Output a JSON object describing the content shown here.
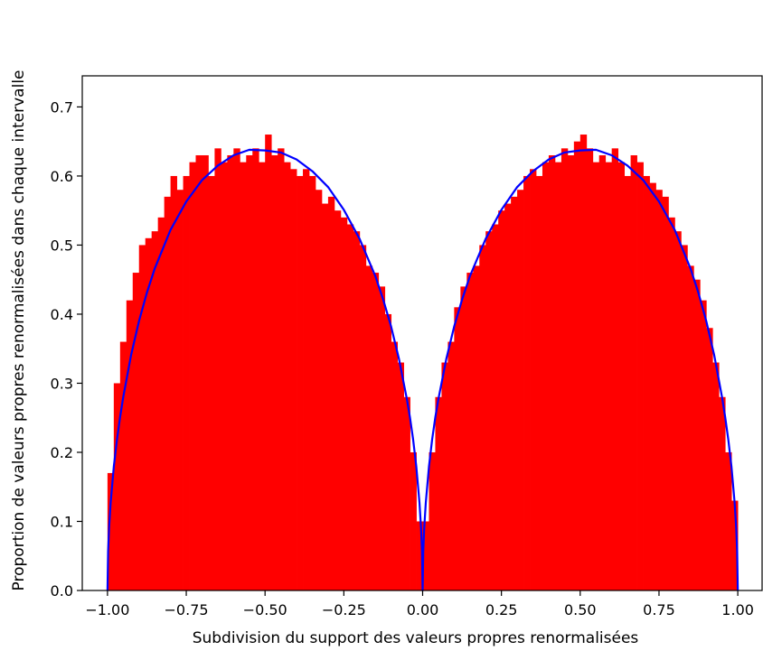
{
  "chart_data": {
    "type": "bar",
    "title": "",
    "xlabel": "Subdivision du support des valeurs propres renormalisées",
    "ylabel": "Proportion de valeurs propres renormalisées dans chaque intervalle",
    "xlim": [
      -1.08,
      1.08
    ],
    "ylim": [
      0.0,
      0.745
    ],
    "xticks": [
      -1.0,
      -0.75,
      -0.5,
      -0.25,
      0.0,
      0.25,
      0.5,
      0.75,
      1.0
    ],
    "xtick_labels": [
      "−1.00",
      "−0.75",
      "−0.50",
      "−0.25",
      "0.00",
      "0.25",
      "0.50",
      "0.75",
      "1.00"
    ],
    "yticks": [
      0.0,
      0.1,
      0.2,
      0.3,
      0.4,
      0.5,
      0.6,
      0.7
    ],
    "ytick_labels": [
      "0.0",
      "0.1",
      "0.2",
      "0.3",
      "0.4",
      "0.5",
      "0.6",
      "0.7"
    ],
    "grid": false,
    "histogram": {
      "name": "",
      "color": "#ff0000",
      "bin_edges": [
        -1.0,
        -0.98,
        -0.96,
        -0.94,
        -0.92,
        -0.9,
        -0.88,
        -0.86,
        -0.84,
        -0.82,
        -0.8,
        -0.78,
        -0.76,
        -0.74,
        -0.72,
        -0.7,
        -0.68,
        -0.66,
        -0.64,
        -0.62,
        -0.6,
        -0.58,
        -0.56,
        -0.54,
        -0.52,
        -0.5,
        -0.48,
        -0.46,
        -0.44,
        -0.42,
        -0.4,
        -0.38,
        -0.36,
        -0.34,
        -0.32,
        -0.3,
        -0.28,
        -0.26,
        -0.24,
        -0.22,
        -0.2,
        -0.18,
        -0.16,
        -0.14,
        -0.12,
        -0.1,
        -0.08,
        -0.06,
        -0.04,
        -0.02,
        0.0,
        0.02,
        0.04,
        0.06,
        0.08,
        0.1,
        0.12,
        0.14,
        0.16,
        0.18,
        0.2,
        0.22,
        0.24,
        0.26,
        0.28,
        0.3,
        0.32,
        0.34,
        0.36,
        0.38,
        0.4,
        0.42,
        0.44,
        0.46,
        0.48,
        0.5,
        0.52,
        0.54,
        0.56,
        0.58,
        0.6,
        0.62,
        0.64,
        0.66,
        0.68,
        0.7,
        0.72,
        0.74,
        0.76,
        0.78,
        0.8,
        0.82,
        0.84,
        0.86,
        0.88,
        0.9,
        0.92,
        0.94,
        0.96,
        0.98,
        1.0
      ],
      "values": [
        0.17,
        0.3,
        0.36,
        0.42,
        0.46,
        0.5,
        0.51,
        0.52,
        0.54,
        0.57,
        0.6,
        0.58,
        0.6,
        0.62,
        0.63,
        0.63,
        0.6,
        0.64,
        0.62,
        0.63,
        0.64,
        0.62,
        0.63,
        0.64,
        0.62,
        0.66,
        0.63,
        0.64,
        0.62,
        0.61,
        0.6,
        0.61,
        0.6,
        0.58,
        0.56,
        0.57,
        0.55,
        0.54,
        0.53,
        0.52,
        0.5,
        0.47,
        0.46,
        0.44,
        0.4,
        0.36,
        0.33,
        0.28,
        0.2,
        0.1,
        0.1,
        0.2,
        0.28,
        0.33,
        0.36,
        0.41,
        0.44,
        0.46,
        0.47,
        0.5,
        0.52,
        0.53,
        0.55,
        0.56,
        0.57,
        0.58,
        0.6,
        0.61,
        0.6,
        0.62,
        0.63,
        0.62,
        0.64,
        0.63,
        0.65,
        0.66,
        0.64,
        0.62,
        0.63,
        0.62,
        0.64,
        0.62,
        0.6,
        0.63,
        0.62,
        0.6,
        0.59,
        0.58,
        0.57,
        0.54,
        0.52,
        0.5,
        0.47,
        0.45,
        0.42,
        0.38,
        0.33,
        0.28,
        0.2,
        0.13
      ]
    },
    "curve": {
      "name": "",
      "color": "#0000ff",
      "x": [
        -1.0,
        -0.998,
        -0.995,
        -0.99,
        -0.98,
        -0.97,
        -0.96,
        -0.95,
        -0.925,
        -0.9,
        -0.875,
        -0.85,
        -0.8,
        -0.75,
        -0.7,
        -0.65,
        -0.6,
        -0.55,
        -0.5,
        -0.45,
        -0.4,
        -0.35,
        -0.3,
        -0.25,
        -0.2,
        -0.15,
        -0.125,
        -0.1,
        -0.075,
        -0.05,
        -0.04,
        -0.03,
        -0.02,
        -0.01,
        -0.005,
        -0.002,
        0.0,
        0.002,
        0.005,
        0.01,
        0.02,
        0.03,
        0.04,
        0.05,
        0.075,
        0.1,
        0.125,
        0.15,
        0.2,
        0.25,
        0.3,
        0.35,
        0.4,
        0.45,
        0.5,
        0.55,
        0.6,
        0.65,
        0.7,
        0.75,
        0.8,
        0.85,
        0.875,
        0.9,
        0.925,
        0.95,
        0.96,
        0.97,
        0.98,
        0.99,
        0.995,
        0.998,
        1.0
      ],
      "y": [
        0.0,
        0.057,
        0.09,
        0.127,
        0.179,
        0.218,
        0.251,
        0.28,
        0.341,
        0.39,
        0.431,
        0.466,
        0.522,
        0.563,
        0.594,
        0.615,
        0.63,
        0.638,
        0.637,
        0.634,
        0.624,
        0.607,
        0.584,
        0.551,
        0.509,
        0.455,
        0.421,
        0.382,
        0.335,
        0.277,
        0.25,
        0.218,
        0.179,
        0.127,
        0.09,
        0.057,
        0.0,
        0.057,
        0.09,
        0.127,
        0.179,
        0.218,
        0.25,
        0.277,
        0.335,
        0.382,
        0.421,
        0.455,
        0.509,
        0.551,
        0.584,
        0.607,
        0.624,
        0.634,
        0.637,
        0.638,
        0.63,
        0.615,
        0.594,
        0.563,
        0.522,
        0.466,
        0.431,
        0.39,
        0.341,
        0.28,
        0.251,
        0.218,
        0.179,
        0.127,
        0.09,
        0.057,
        0.0
      ]
    }
  }
}
